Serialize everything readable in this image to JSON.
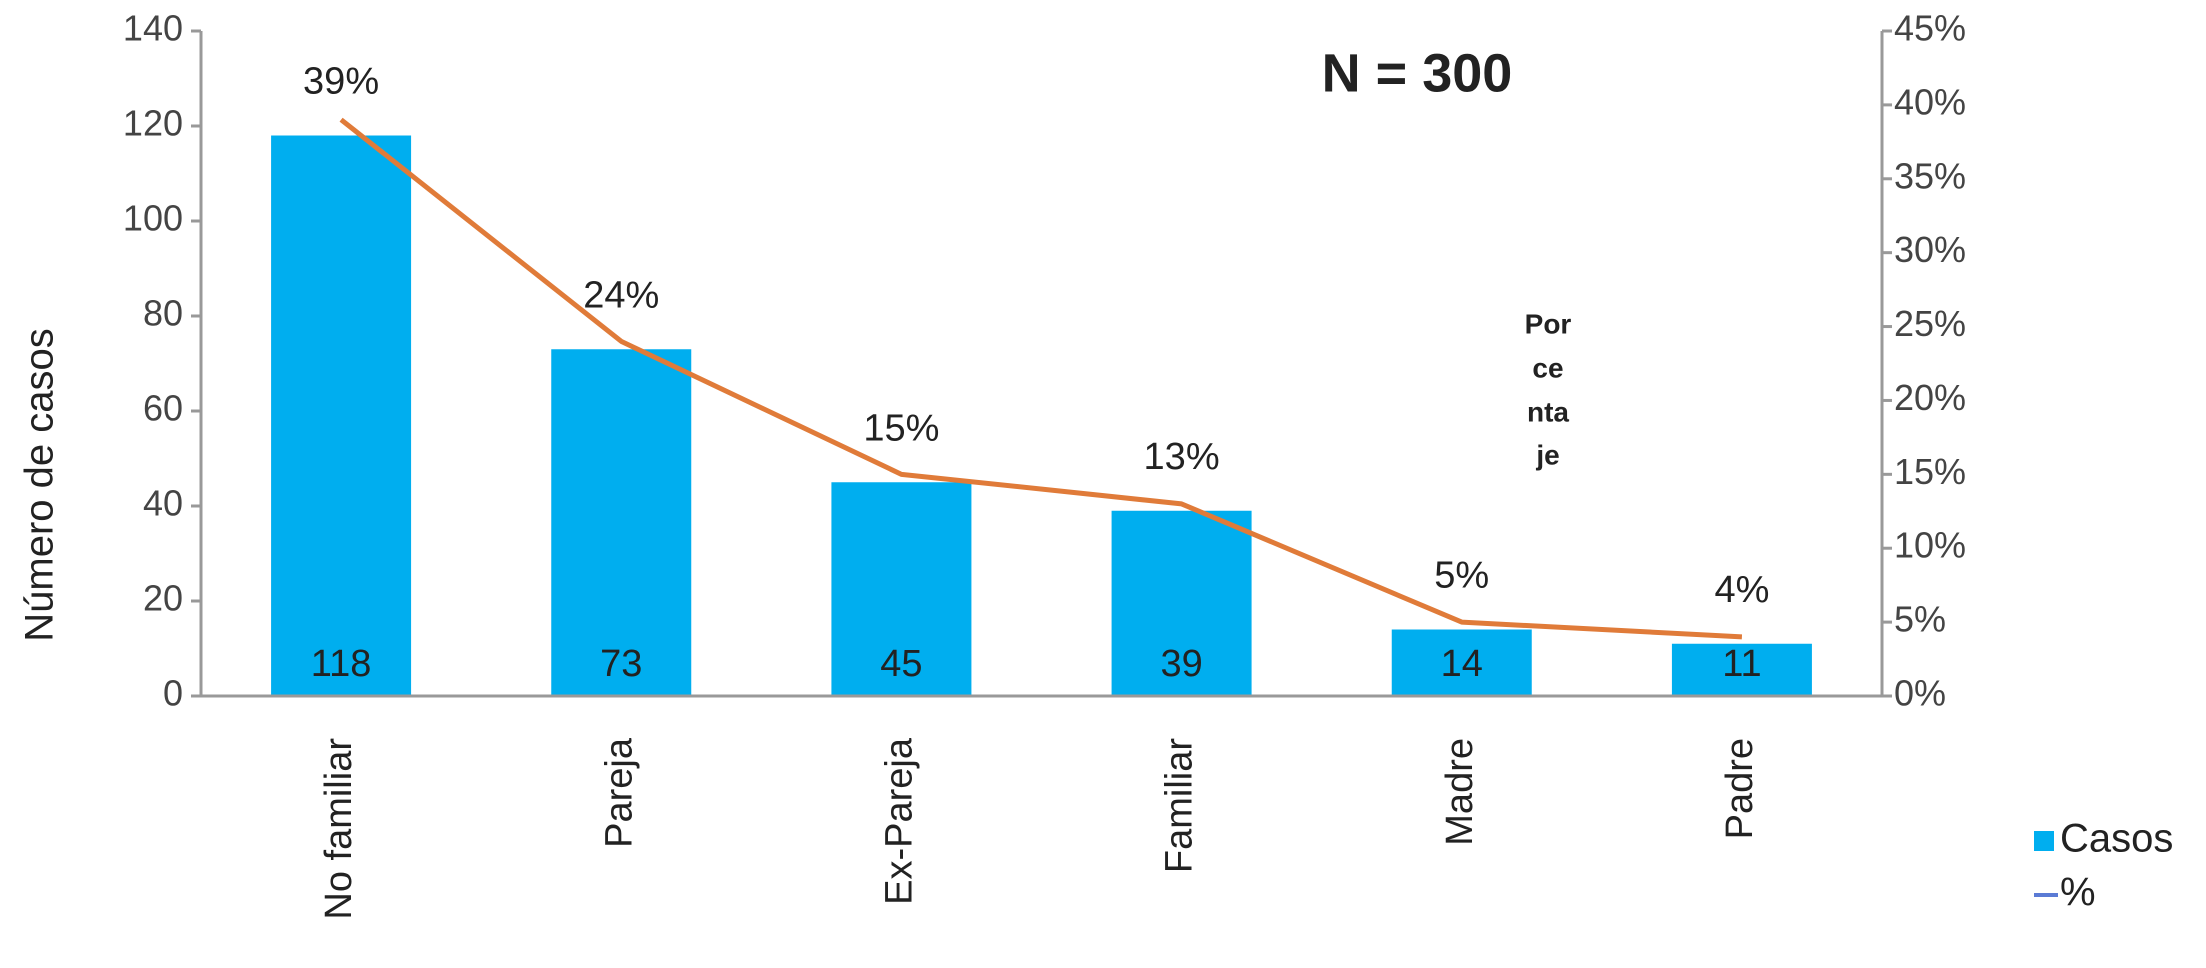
{
  "chart_data": {
    "type": "bar_line",
    "categories": [
      "No familiar",
      "Pareja",
      "Ex-Pareja",
      "Familiar",
      "Madre",
      "Padre"
    ],
    "series": [
      {
        "name": "Casos",
        "type": "bar",
        "color": "#00aeef",
        "values": [
          118,
          73,
          45,
          39,
          14,
          11
        ]
      },
      {
        "name": "%",
        "type": "line",
        "axis": "y2",
        "color": "#e07b39",
        "legend_color": "#5b7bd5",
        "values": [
          39,
          24,
          15,
          13,
          5,
          4
        ],
        "value_labels": [
          "39%",
          "24%",
          "15%",
          "13%",
          "5%",
          "4%"
        ]
      }
    ],
    "ylabel": "Número de casos",
    "ylim": [
      0,
      140
    ],
    "yticks": [
      0,
      20,
      40,
      60,
      80,
      100,
      120,
      140
    ],
    "y2lim": [
      0,
      45
    ],
    "y2ticks": [
      {
        "value": 0,
        "label": "0%"
      },
      {
        "value": 5,
        "label": "5%"
      },
      {
        "value": 10,
        "label": "10%"
      },
      {
        "value": 15,
        "label": "15%"
      },
      {
        "value": 20,
        "label": "20%"
      },
      {
        "value": 25,
        "label": "25%"
      },
      {
        "value": 30,
        "label": "30%"
      },
      {
        "value": 35,
        "label": "35%"
      },
      {
        "value": 40,
        "label": "40%"
      },
      {
        "value": 45,
        "label": "45%"
      }
    ],
    "annotations": [
      {
        "text": "N = 300"
      },
      {
        "lines": [
          "Por",
          "ce",
          "nta",
          "je"
        ]
      }
    ],
    "legend": "right"
  }
}
